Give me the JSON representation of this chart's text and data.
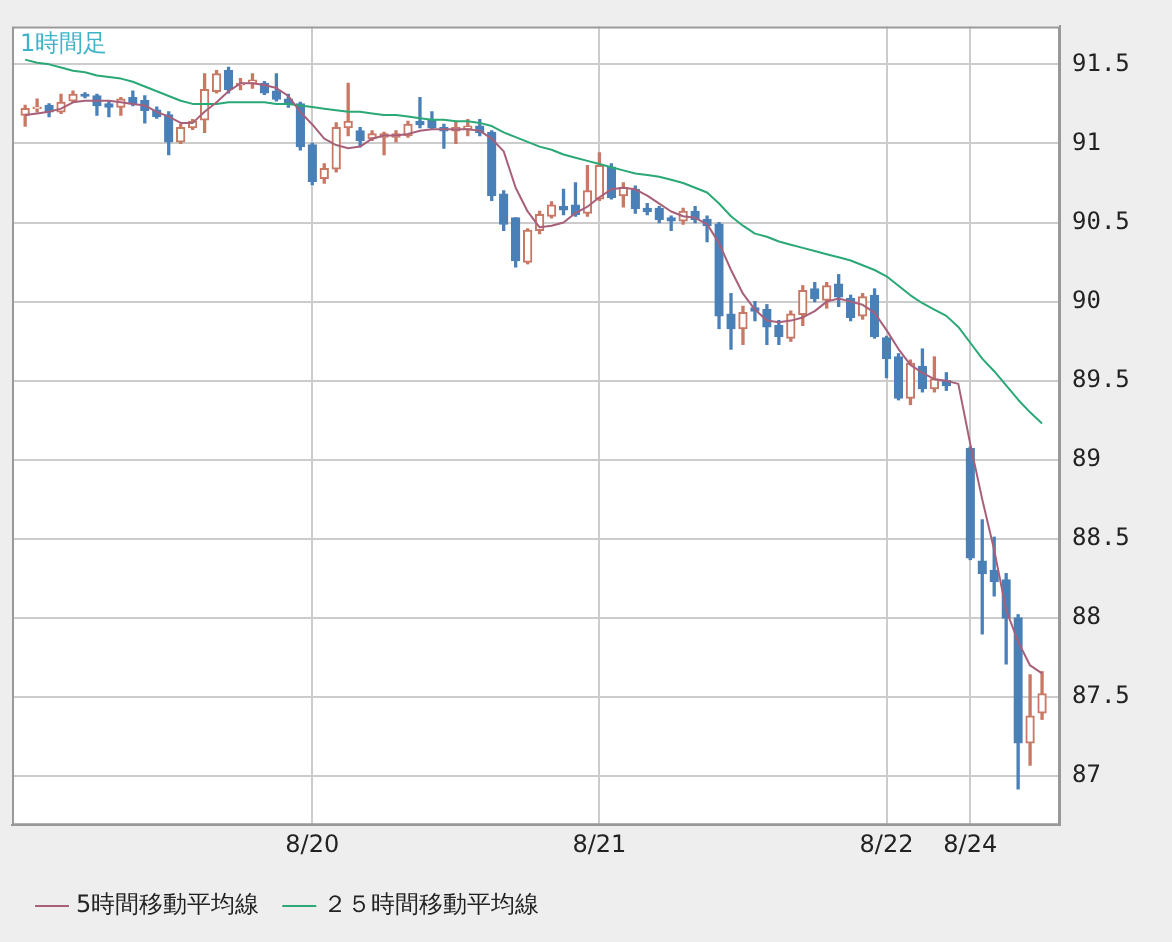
{
  "chart_data": {
    "type": "candlestick",
    "title": "1時間足",
    "categories": [
      null,
      null,
      null,
      null,
      null,
      null,
      null,
      null,
      null,
      null,
      null,
      null,
      null,
      null,
      null,
      null,
      null,
      null,
      null,
      null,
      null,
      null,
      null,
      null,
      "8/20",
      null,
      null,
      null,
      null,
      null,
      null,
      null,
      null,
      null,
      null,
      null,
      null,
      null,
      null,
      null,
      null,
      null,
      null,
      null,
      null,
      null,
      null,
      null,
      "8/21",
      null,
      null,
      null,
      null,
      null,
      null,
      null,
      null,
      null,
      null,
      null,
      null,
      null,
      null,
      null,
      null,
      null,
      null,
      null,
      null,
      null,
      null,
      null,
      "8/22",
      null,
      null,
      null,
      null,
      null,
      null,
      "8/24",
      null,
      null,
      null,
      null,
      null,
      null
    ],
    "ohlc": [
      [
        91.18,
        91.24,
        91.11,
        91.22
      ],
      [
        91.22,
        91.28,
        91.2,
        91.23
      ],
      [
        91.24,
        91.25,
        91.17,
        91.2
      ],
      [
        91.2,
        91.31,
        91.19,
        91.26
      ],
      [
        91.27,
        91.33,
        91.26,
        91.31
      ],
      [
        91.31,
        91.32,
        91.29,
        91.3
      ],
      [
        91.3,
        91.31,
        91.18,
        91.24
      ],
      [
        91.25,
        91.27,
        91.17,
        91.23
      ],
      [
        91.23,
        91.29,
        91.18,
        91.28
      ],
      [
        91.29,
        91.33,
        91.24,
        91.25
      ],
      [
        91.27,
        91.3,
        91.13,
        91.21
      ],
      [
        91.21,
        91.23,
        91.16,
        91.17
      ],
      [
        91.18,
        91.2,
        90.93,
        91.01
      ],
      [
        91.01,
        91.12,
        91.0,
        91.1
      ],
      [
        91.1,
        91.15,
        91.09,
        91.14
      ],
      [
        91.15,
        91.44,
        91.07,
        91.34
      ],
      [
        91.33,
        91.46,
        91.32,
        91.44
      ],
      [
        91.46,
        91.48,
        91.32,
        91.34
      ],
      [
        91.37,
        91.41,
        91.34,
        91.38
      ],
      [
        91.38,
        91.44,
        91.35,
        91.4
      ],
      [
        91.38,
        91.39,
        91.31,
        91.32
      ],
      [
        91.33,
        91.44,
        91.27,
        91.28
      ],
      [
        91.28,
        91.31,
        91.23,
        91.25
      ],
      [
        91.25,
        91.26,
        90.96,
        90.98
      ],
      [
        90.99,
        91.0,
        90.74,
        90.76
      ],
      [
        90.78,
        90.87,
        90.75,
        90.84
      ],
      [
        90.84,
        91.13,
        90.82,
        91.1
      ],
      [
        91.1,
        91.38,
        91.05,
        91.14
      ],
      [
        91.08,
        91.1,
        90.98,
        91.02
      ],
      [
        91.03,
        91.08,
        91.02,
        91.06
      ],
      [
        91.04,
        91.07,
        90.93,
        91.06
      ],
      [
        91.04,
        91.08,
        91.01,
        91.06
      ],
      [
        91.05,
        91.14,
        91.04,
        91.12
      ],
      [
        91.14,
        91.29,
        91.1,
        91.12
      ],
      [
        91.15,
        91.2,
        91.09,
        91.1
      ],
      [
        91.1,
        91.12,
        90.97,
        91.08
      ],
      [
        91.08,
        91.14,
        91.0,
        91.1
      ],
      [
        91.09,
        91.15,
        91.05,
        91.11
      ],
      [
        91.11,
        91.15,
        91.05,
        91.07
      ],
      [
        91.07,
        91.08,
        90.64,
        90.67
      ],
      [
        90.68,
        90.7,
        90.45,
        90.49
      ],
      [
        90.53,
        90.53,
        90.22,
        90.26
      ],
      [
        90.25,
        90.46,
        90.24,
        90.45
      ],
      [
        90.45,
        90.57,
        90.43,
        90.55
      ],
      [
        90.54,
        90.63,
        90.53,
        90.61
      ],
      [
        90.6,
        90.71,
        90.55,
        90.58
      ],
      [
        90.61,
        90.75,
        90.54,
        90.55
      ],
      [
        90.56,
        90.86,
        90.54,
        90.7
      ],
      [
        90.65,
        90.94,
        90.64,
        90.86
      ],
      [
        90.85,
        90.87,
        90.65,
        90.66
      ],
      [
        90.67,
        90.75,
        90.6,
        90.72
      ],
      [
        90.71,
        90.73,
        90.56,
        90.59
      ],
      [
        90.59,
        90.62,
        90.55,
        90.57
      ],
      [
        90.59,
        90.6,
        90.5,
        90.52
      ],
      [
        90.53,
        90.54,
        90.45,
        90.51
      ],
      [
        90.51,
        90.59,
        90.49,
        90.57
      ],
      [
        90.57,
        90.6,
        90.5,
        90.52
      ],
      [
        90.52,
        90.54,
        90.38,
        90.48
      ],
      [
        90.49,
        90.5,
        89.83,
        89.91
      ],
      [
        89.92,
        90.05,
        89.7,
        89.83
      ],
      [
        89.83,
        89.97,
        89.73,
        89.93
      ],
      [
        89.96,
        90.0,
        89.88,
        89.94
      ],
      [
        89.95,
        89.98,
        89.73,
        89.84
      ],
      [
        89.85,
        89.88,
        89.73,
        89.78
      ],
      [
        89.77,
        89.94,
        89.75,
        89.92
      ],
      [
        89.92,
        90.1,
        89.85,
        90.07
      ],
      [
        90.08,
        90.12,
        90.0,
        90.02
      ],
      [
        90.01,
        90.12,
        89.96,
        90.1
      ],
      [
        90.11,
        90.17,
        89.97,
        90.03
      ],
      [
        90.02,
        90.04,
        89.88,
        89.9
      ],
      [
        89.91,
        90.05,
        89.89,
        90.03
      ],
      [
        90.04,
        90.08,
        89.77,
        89.78
      ],
      [
        89.77,
        89.78,
        89.52,
        89.64
      ],
      [
        89.65,
        89.67,
        89.38,
        89.39
      ],
      [
        89.39,
        89.63,
        89.35,
        89.61
      ],
      [
        89.59,
        89.7,
        89.43,
        89.45
      ],
      [
        89.45,
        89.65,
        89.43,
        89.51
      ],
      [
        89.5,
        89.55,
        89.44,
        89.47
      ],
      null,
      [
        89.07,
        89.08,
        88.37,
        88.38
      ],
      [
        88.36,
        88.62,
        87.9,
        88.28
      ],
      [
        88.3,
        88.51,
        88.14,
        88.23
      ],
      [
        88.24,
        88.28,
        87.71,
        88.0
      ],
      [
        88.0,
        88.02,
        86.92,
        87.21
      ],
      [
        87.21,
        87.64,
        87.07,
        87.38
      ],
      [
        87.4,
        87.66,
        87.36,
        87.52
      ]
    ],
    "colors": [
      "#c87864",
      "#c87864",
      "#4a80b8",
      "#c87864",
      "#c87864",
      "#4a80b8",
      "#4a80b8",
      "#4a80b8",
      "#c87864",
      "#4a80b8",
      "#4a80b8",
      "#4a80b8",
      "#4a80b8",
      "#c87864",
      "#c87864",
      "#c87864",
      "#c87864",
      "#4a80b8",
      "#c87864",
      "#c87864",
      "#4a80b8",
      "#4a80b8",
      "#4a80b8",
      "#4a80b8",
      "#4a80b8",
      "#c87864",
      "#c87864",
      "#c87864",
      "#4a80b8",
      "#c87864",
      "#c87864",
      "#c87864",
      "#c87864",
      "#4a80b8",
      "#4a80b8",
      "#4a80b8",
      "#c87864",
      "#c87864",
      "#4a80b8",
      "#4a80b8",
      "#4a80b8",
      "#4a80b8",
      "#c87864",
      "#c87864",
      "#c87864",
      "#4a80b8",
      "#4a80b8",
      "#c87864",
      "#c87864",
      "#4a80b8",
      "#c87864",
      "#4a80b8",
      "#4a80b8",
      "#4a80b8",
      "#4a80b8",
      "#c87864",
      "#4a80b8",
      "#4a80b8",
      "#4a80b8",
      "#4a80b8",
      "#c87864",
      "#4a80b8",
      "#4a80b8",
      "#4a80b8",
      "#c87864",
      "#c87864",
      "#4a80b8",
      "#c87864",
      "#4a80b8",
      "#4a80b8",
      "#c87864",
      "#4a80b8",
      "#4a80b8",
      "#4a80b8",
      "#c87864",
      "#4a80b8",
      "#c87864",
      "#4a80b8",
      null,
      "#4a80b8",
      "#4a80b8",
      "#4a80b8",
      "#4a80b8",
      "#4a80b8",
      "#c87864",
      "#c87864"
    ],
    "series": [
      {
        "name": "5時間移動平均線",
        "type": "line",
        "color": "#a8607a",
        "values": [
          91.18,
          91.19,
          91.2,
          91.22,
          91.26,
          91.27,
          91.27,
          91.27,
          91.26,
          91.25,
          91.24,
          91.2,
          91.17,
          91.13,
          91.13,
          91.2,
          91.26,
          91.33,
          91.38,
          91.38,
          91.37,
          91.35,
          91.3,
          91.2,
          91.12,
          91.03,
          90.99,
          90.97,
          90.98,
          91.03,
          91.05,
          91.05,
          91.06,
          91.08,
          91.09,
          91.09,
          91.09,
          91.09,
          91.08,
          91.03,
          90.95,
          90.72,
          90.57,
          90.47,
          90.48,
          90.5,
          90.56,
          90.6,
          90.66,
          90.71,
          90.72,
          90.71,
          90.67,
          90.62,
          90.57,
          90.54,
          90.53,
          90.49,
          90.37,
          90.2,
          90.05,
          89.95,
          89.88,
          89.87,
          89.88,
          89.9,
          89.94,
          90.0,
          90.02,
          90.0,
          89.98,
          89.93,
          89.82,
          89.7,
          89.6,
          89.55,
          89.51,
          89.5,
          89.48,
          89.1,
          88.75,
          88.43,
          88.05,
          87.85,
          87.7,
          87.65
        ]
      },
      {
        "name": "２５時間移動平均線",
        "type": "line",
        "color": "#2aa876",
        "values": [
          91.53,
          91.51,
          91.5,
          91.48,
          91.46,
          91.45,
          91.43,
          91.42,
          91.41,
          91.39,
          91.36,
          91.33,
          91.3,
          91.27,
          91.25,
          91.25,
          91.25,
          91.26,
          91.26,
          91.26,
          91.26,
          91.25,
          91.25,
          91.24,
          91.23,
          91.22,
          91.21,
          91.2,
          91.2,
          91.19,
          91.18,
          91.18,
          91.17,
          91.16,
          91.15,
          91.15,
          91.14,
          91.14,
          91.13,
          91.11,
          91.07,
          91.04,
          91.01,
          90.98,
          90.96,
          90.93,
          90.91,
          90.89,
          90.87,
          90.85,
          90.83,
          90.81,
          90.8,
          90.79,
          90.77,
          90.75,
          90.72,
          90.69,
          90.62,
          90.54,
          90.48,
          90.43,
          90.41,
          90.38,
          90.36,
          90.34,
          90.32,
          90.3,
          90.28,
          90.26,
          90.23,
          90.2,
          90.16,
          90.1,
          90.04,
          89.99,
          89.95,
          89.91,
          89.84,
          89.74,
          89.64,
          89.56,
          89.47,
          89.38,
          89.3,
          89.23
        ]
      }
    ],
    "ylim": [
      86.69,
      91.74
    ],
    "yticks": [
      87,
      87.5,
      88,
      88.5,
      89,
      89.5,
      90,
      90.5,
      91,
      91.5
    ],
    "grid": true,
    "legend": "bottom left"
  }
}
